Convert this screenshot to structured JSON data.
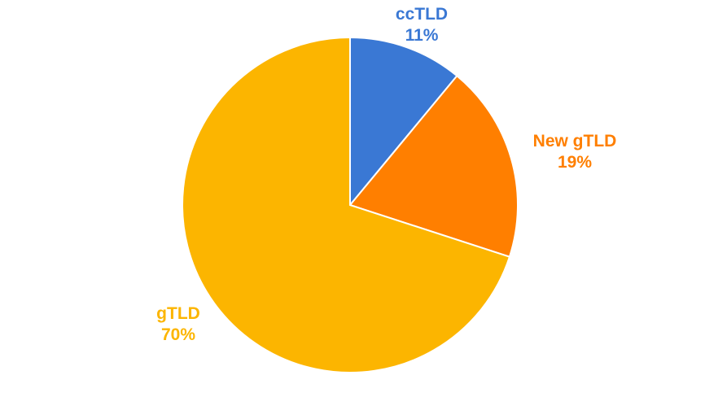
{
  "chart_data": {
    "type": "pie",
    "title": "",
    "slices": [
      {
        "label": "ccTLD",
        "value": 11,
        "value_label": "11%",
        "color": "#3a78d4"
      },
      {
        "label": "New gTLD",
        "value": 19,
        "value_label": "19%",
        "color": "#ff7f00"
      },
      {
        "label": "gTLD",
        "value": 70,
        "value_label": "70%",
        "color": "#fcb500"
      }
    ],
    "start_angle_deg": 0,
    "direction": "clockwise",
    "legend": "none",
    "labels_outside": true
  }
}
